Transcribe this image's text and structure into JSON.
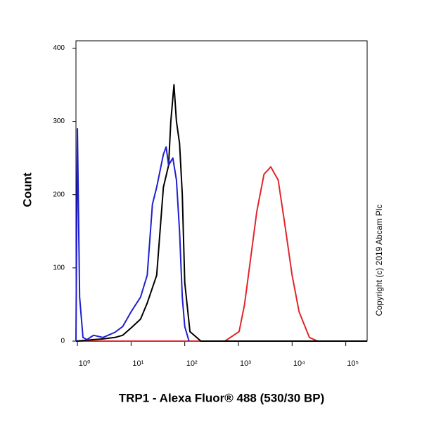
{
  "chart_data": {
    "type": "line",
    "x_label": "TRP1 - Alexa Fluor® 488 (530/30 BP)",
    "y_label": "Count",
    "annotation": "Copyright (c) 2019 Abcam Plc",
    "x_scale": "log",
    "xlim": [
      0.94,
      250000
    ],
    "ylim": [
      0,
      410
    ],
    "xticks": [
      {
        "value": 1,
        "label": "10⁰"
      },
      {
        "value": 10,
        "label": "10¹"
      },
      {
        "value": 100,
        "label": "10²"
      },
      {
        "value": 1000,
        "label": "10³"
      },
      {
        "value": 10000,
        "label": "10⁴"
      },
      {
        "value": 100000,
        "label": "10⁵"
      }
    ],
    "yticks": [
      0,
      100,
      200,
      300,
      400
    ],
    "series": [
      {
        "color": "#e0262b",
        "x": [
          0.94,
          300,
          560,
          1030,
          1300,
          1600,
          2200,
          3000,
          3600,
          4000,
          4600,
          5500,
          7300,
          10000,
          13500,
          21000,
          30000,
          250000
        ],
        "values": [
          0,
          0,
          0,
          13,
          50,
          100,
          177,
          228,
          234,
          238,
          230,
          220,
          160,
          90,
          40,
          5,
          0,
          0
        ]
      },
      {
        "color": "#000000",
        "x": [
          0.94,
          2,
          3,
          5,
          7,
          10,
          15,
          20,
          30,
          40,
          50,
          55,
          63,
          70,
          80,
          90,
          100,
          125,
          200,
          250000
        ],
        "values": [
          0,
          2,
          3,
          5,
          8,
          18,
          30,
          52,
          90,
          210,
          240,
          300,
          350,
          300,
          270,
          200,
          80,
          13,
          0,
          0
        ]
      },
      {
        "color": "#1f1fd0",
        "x": [
          0.94,
          1.0,
          1.1,
          1.27,
          1.5,
          2,
          3,
          5,
          7,
          10,
          15,
          20,
          25,
          30,
          40,
          45,
          50,
          60,
          70,
          80,
          90,
          100,
          120
        ],
        "values": [
          0,
          290,
          60,
          5,
          2,
          8,
          5,
          12,
          20,
          40,
          60,
          90,
          187,
          210,
          255,
          265,
          240,
          250,
          220,
          150,
          60,
          20,
          0
        ]
      }
    ]
  }
}
